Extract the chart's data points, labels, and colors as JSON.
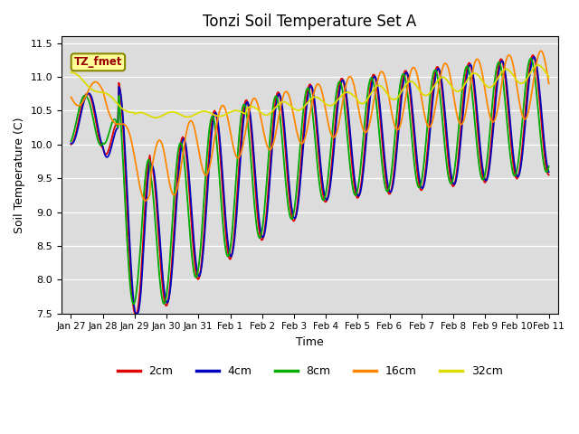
{
  "title": "Tonzi Soil Temperature Set A",
  "xlabel": "Time",
  "ylabel": "Soil Temperature (C)",
  "ylim": [
    7.5,
    11.6
  ],
  "plot_bg_color": "#dcdcdc",
  "annotation_text": "TZ_fmet",
  "annotation_bg": "#ffff99",
  "annotation_fg": "#990000",
  "legend_labels": [
    "2cm",
    "4cm",
    "8cm",
    "16cm",
    "32cm"
  ],
  "legend_colors": [
    "#dd0000",
    "#0000bb",
    "#00aa00",
    "#ff8800",
    "#dddd00"
  ],
  "xtick_labels": [
    "Jan 27",
    "Jan 28",
    "Jan 29",
    "Jan 30",
    "Jan 31",
    "Feb 1",
    "Feb 2",
    "Feb 3",
    "Feb 4",
    "Feb 5",
    "Feb 6",
    "Feb 7",
    "Feb 8",
    "Feb 9",
    "Feb 10",
    "Feb 11"
  ],
  "num_points": 480
}
